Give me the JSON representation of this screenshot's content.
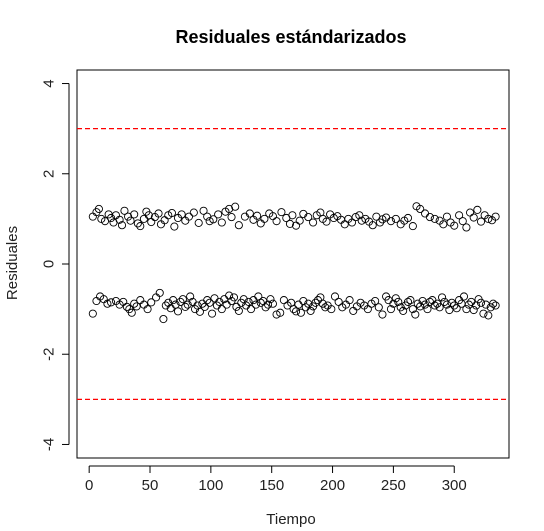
{
  "chart_data": {
    "type": "scatter",
    "title": "Residuales estándarizados",
    "xlabel": "Tiempo",
    "ylabel": "Residuales",
    "xlim": [
      -10,
      345
    ],
    "ylim": [
      -4.3,
      4.3
    ],
    "x_ticks": [
      0,
      50,
      100,
      150,
      200,
      250,
      300
    ],
    "y_ticks": [
      -4,
      -2,
      0,
      2,
      4
    ],
    "x_tick_labels": [
      "0",
      "50",
      "100",
      "150",
      "200",
      "250",
      "300"
    ],
    "y_tick_labels": [
      "-4",
      "-2",
      "0",
      "2",
      "4"
    ],
    "reference_lines": [
      {
        "y": 3,
        "color": "#ff0000",
        "style": "dashed"
      },
      {
        "y": -3,
        "color": "#ff0000",
        "style": "dashed"
      }
    ],
    "grid": false,
    "marker": "open-circle",
    "point_color": "#000000",
    "series": [
      {
        "x": [
          3,
          6,
          8,
          10,
          13,
          16,
          18,
          20,
          22,
          25,
          27,
          29,
          32,
          34,
          37,
          40,
          42,
          45,
          47,
          49,
          51,
          54,
          57,
          59,
          62,
          65,
          68,
          70,
          73,
          76,
          79,
          82,
          86,
          90,
          94,
          97,
          99,
          102,
          106,
          109,
          112,
          115,
          117,
          120,
          123,
          128,
          132,
          135,
          138,
          141,
          144,
          148,
          151,
          154,
          158,
          162,
          165,
          167,
          170,
          173,
          176,
          180,
          184,
          187,
          190,
          192,
          195,
          198,
          201,
          204,
          207,
          210,
          213,
          216,
          219,
          222,
          224,
          227,
          230,
          233,
          236,
          239,
          241,
          244,
          248,
          252,
          256,
          259,
          262,
          266,
          269,
          272,
          276,
          280,
          284,
          288,
          291,
          294,
          297,
          300,
          304,
          307,
          310,
          313,
          316,
          319,
          322,
          325,
          328,
          331,
          334
        ],
        "y": [
          1.05,
          1.15,
          1.22,
          1.0,
          0.95,
          1.1,
          1.02,
          0.92,
          1.08,
          0.98,
          0.86,
          1.18,
          1.05,
          0.96,
          1.1,
          0.9,
          0.84,
          1.0,
          1.16,
          1.08,
          0.93,
          1.04,
          1.12,
          0.88,
          0.97,
          1.08,
          1.13,
          0.83,
          1.02,
          1.1,
          0.96,
          1.05,
          1.14,
          0.91,
          1.18,
          1.05,
          0.95,
          0.99,
          1.1,
          0.92,
          1.16,
          1.22,
          1.04,
          1.27,
          0.86,
          1.05,
          1.12,
          0.98,
          1.07,
          0.9,
          1.0,
          1.12,
          1.06,
          0.95,
          1.15,
          1.02,
          0.89,
          1.08,
          0.85,
          0.96,
          1.11,
          1.04,
          0.92,
          1.08,
          1.14,
          1.0,
          0.94,
          1.1,
          1.02,
          1.06,
          0.98,
          0.88,
          1.0,
          0.92,
          1.04,
          1.08,
          0.96,
          1.0,
          0.94,
          0.86,
          1.05,
          0.92,
          0.99,
          1.03,
          0.95,
          1.0,
          0.88,
          0.96,
          1.02,
          0.84,
          1.28,
          1.22,
          1.12,
          1.04,
          1.0,
          0.96,
          0.88,
          1.05,
          0.92,
          0.85,
          1.08,
          0.95,
          0.81,
          1.14,
          1.03,
          1.2,
          0.94,
          1.08,
          1.0,
          0.97,
          1.05
        ]
      },
      {
        "x": [
          3,
          6,
          9,
          12,
          15,
          18,
          22,
          25,
          28,
          31,
          33,
          35,
          37,
          39,
          42,
          45,
          48,
          51,
          55,
          58,
          61,
          63,
          65,
          67,
          69,
          71,
          73,
          75,
          77,
          79,
          81,
          83,
          85,
          87,
          89,
          91,
          93,
          95,
          97,
          99,
          101,
          103,
          105,
          107,
          109,
          111,
          113,
          115,
          117,
          119,
          121,
          123,
          125,
          127,
          129,
          131,
          133,
          135,
          137,
          139,
          141,
          143,
          145,
          147,
          149,
          151,
          154,
          157,
          160,
          163,
          166,
          168,
          170,
          172,
          174,
          176,
          178,
          180,
          182,
          184,
          186,
          188,
          190,
          192,
          194,
          196,
          199,
          202,
          205,
          208,
          211,
          214,
          217,
          220,
          223,
          226,
          229,
          232,
          235,
          238,
          241,
          244,
          246,
          248,
          250,
          252,
          254,
          256,
          258,
          260,
          262,
          264,
          266,
          268,
          270,
          272,
          274,
          276,
          278,
          280,
          282,
          284,
          286,
          288,
          290,
          292,
          294,
          296,
          298,
          300,
          302,
          304,
          306,
          308,
          310,
          312,
          314,
          316,
          318,
          320,
          322,
          324,
          326,
          328,
          330,
          332,
          334
        ],
        "y": [
          -1.1,
          -0.82,
          -0.72,
          -0.78,
          -0.88,
          -0.85,
          -0.82,
          -0.9,
          -0.84,
          -0.95,
          -1.0,
          -1.08,
          -0.88,
          -0.94,
          -0.8,
          -0.9,
          -1.0,
          -0.85,
          -0.74,
          -0.64,
          -1.22,
          -0.92,
          -0.86,
          -0.98,
          -0.8,
          -0.9,
          -1.05,
          -0.84,
          -0.78,
          -0.95,
          -0.9,
          -0.72,
          -0.84,
          -1.0,
          -0.92,
          -1.06,
          -0.88,
          -0.95,
          -0.8,
          -0.86,
          -1.1,
          -0.76,
          -0.92,
          -0.84,
          -1.0,
          -0.78,
          -0.9,
          -0.7,
          -0.82,
          -0.74,
          -0.95,
          -1.04,
          -0.86,
          -0.78,
          -0.92,
          -0.84,
          -1.0,
          -0.8,
          -0.9,
          -0.72,
          -0.86,
          -0.82,
          -0.96,
          -0.9,
          -0.78,
          -0.88,
          -1.12,
          -1.08,
          -0.8,
          -0.92,
          -0.86,
          -1.0,
          -1.05,
          -0.9,
          -1.08,
          -0.82,
          -0.96,
          -0.88,
          -1.04,
          -0.94,
          -0.86,
          -0.8,
          -0.74,
          -0.88,
          -0.96,
          -0.92,
          -1.0,
          -0.72,
          -0.84,
          -0.96,
          -0.9,
          -0.8,
          -1.04,
          -0.94,
          -0.86,
          -0.92,
          -1.0,
          -0.88,
          -0.82,
          -0.96,
          -1.12,
          -0.72,
          -0.8,
          -1.0,
          -0.88,
          -0.76,
          -0.84,
          -0.96,
          -1.04,
          -0.92,
          -0.84,
          -0.8,
          -1.0,
          -1.12,
          -0.88,
          -0.94,
          -0.82,
          -0.9,
          -1.0,
          -0.84,
          -0.8,
          -0.92,
          -0.88,
          -0.96,
          -0.74,
          -0.84,
          -0.9,
          -1.02,
          -0.86,
          -0.92,
          -0.98,
          -0.8,
          -0.88,
          -0.72,
          -1.0,
          -0.9,
          -0.84,
          -1.02,
          -0.92,
          -0.78,
          -0.86,
          -1.1,
          -0.9,
          -1.14,
          -0.96,
          -0.88,
          -0.92
        ]
      }
    ]
  }
}
